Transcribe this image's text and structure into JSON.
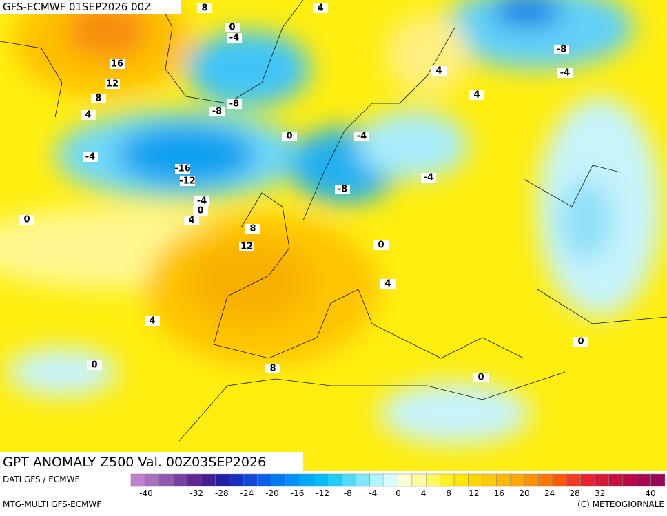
{
  "header": {
    "run": "GFS-ECMWF 01SEP2026 00Z"
  },
  "map": {
    "contour_labels": [
      "8",
      "4",
      "0",
      "-4",
      "16",
      "12",
      "8",
      "4",
      "-8",
      "-8",
      "-4",
      "-16",
      "-12",
      "0",
      "-4",
      "-8",
      "-4",
      "-8",
      "-4",
      "4",
      "4",
      "-4",
      "0",
      "4",
      "0",
      "8",
      "12",
      "0",
      "4",
      "4",
      "0",
      "8",
      "0",
      "0"
    ]
  },
  "footer": {
    "title": "GPT ANOMALY Z500 Val. 00Z03SEP2026",
    "source": "DATI GFS / ECMWF",
    "model": "MTG-MULTI GFS-ECMWF",
    "copyright": "(C) METEOGIORNALE"
  },
  "legend": {
    "ticks": [
      -40,
      -32,
      -28,
      -24,
      -20,
      -16,
      -12,
      -8,
      -4,
      0,
      4,
      8,
      12,
      16,
      20,
      24,
      28,
      32,
      40
    ],
    "colors": [
      "#c080d0",
      "#a870c0",
      "#9058b0",
      "#7840a0",
      "#602890",
      "#402090",
      "#2020a0",
      "#1830c0",
      "#1048d8",
      "#0860e8",
      "#0078f0",
      "#0090f8",
      "#00a8f8",
      "#00bcf8",
      "#20ccf8",
      "#50dcf8",
      "#80e8fc",
      "#b0f4fc",
      "#d8fcfc",
      "#ffffd8",
      "#fffca0",
      "#fff860",
      "#fff020",
      "#ffe800",
      "#ffd800",
      "#ffc800",
      "#ffb800",
      "#ffa800",
      "#ff9000",
      "#ff7800",
      "#ff5800",
      "#f83820",
      "#e82030",
      "#d81838",
      "#c81040",
      "#b80848",
      "#a80850",
      "#980858"
    ]
  }
}
